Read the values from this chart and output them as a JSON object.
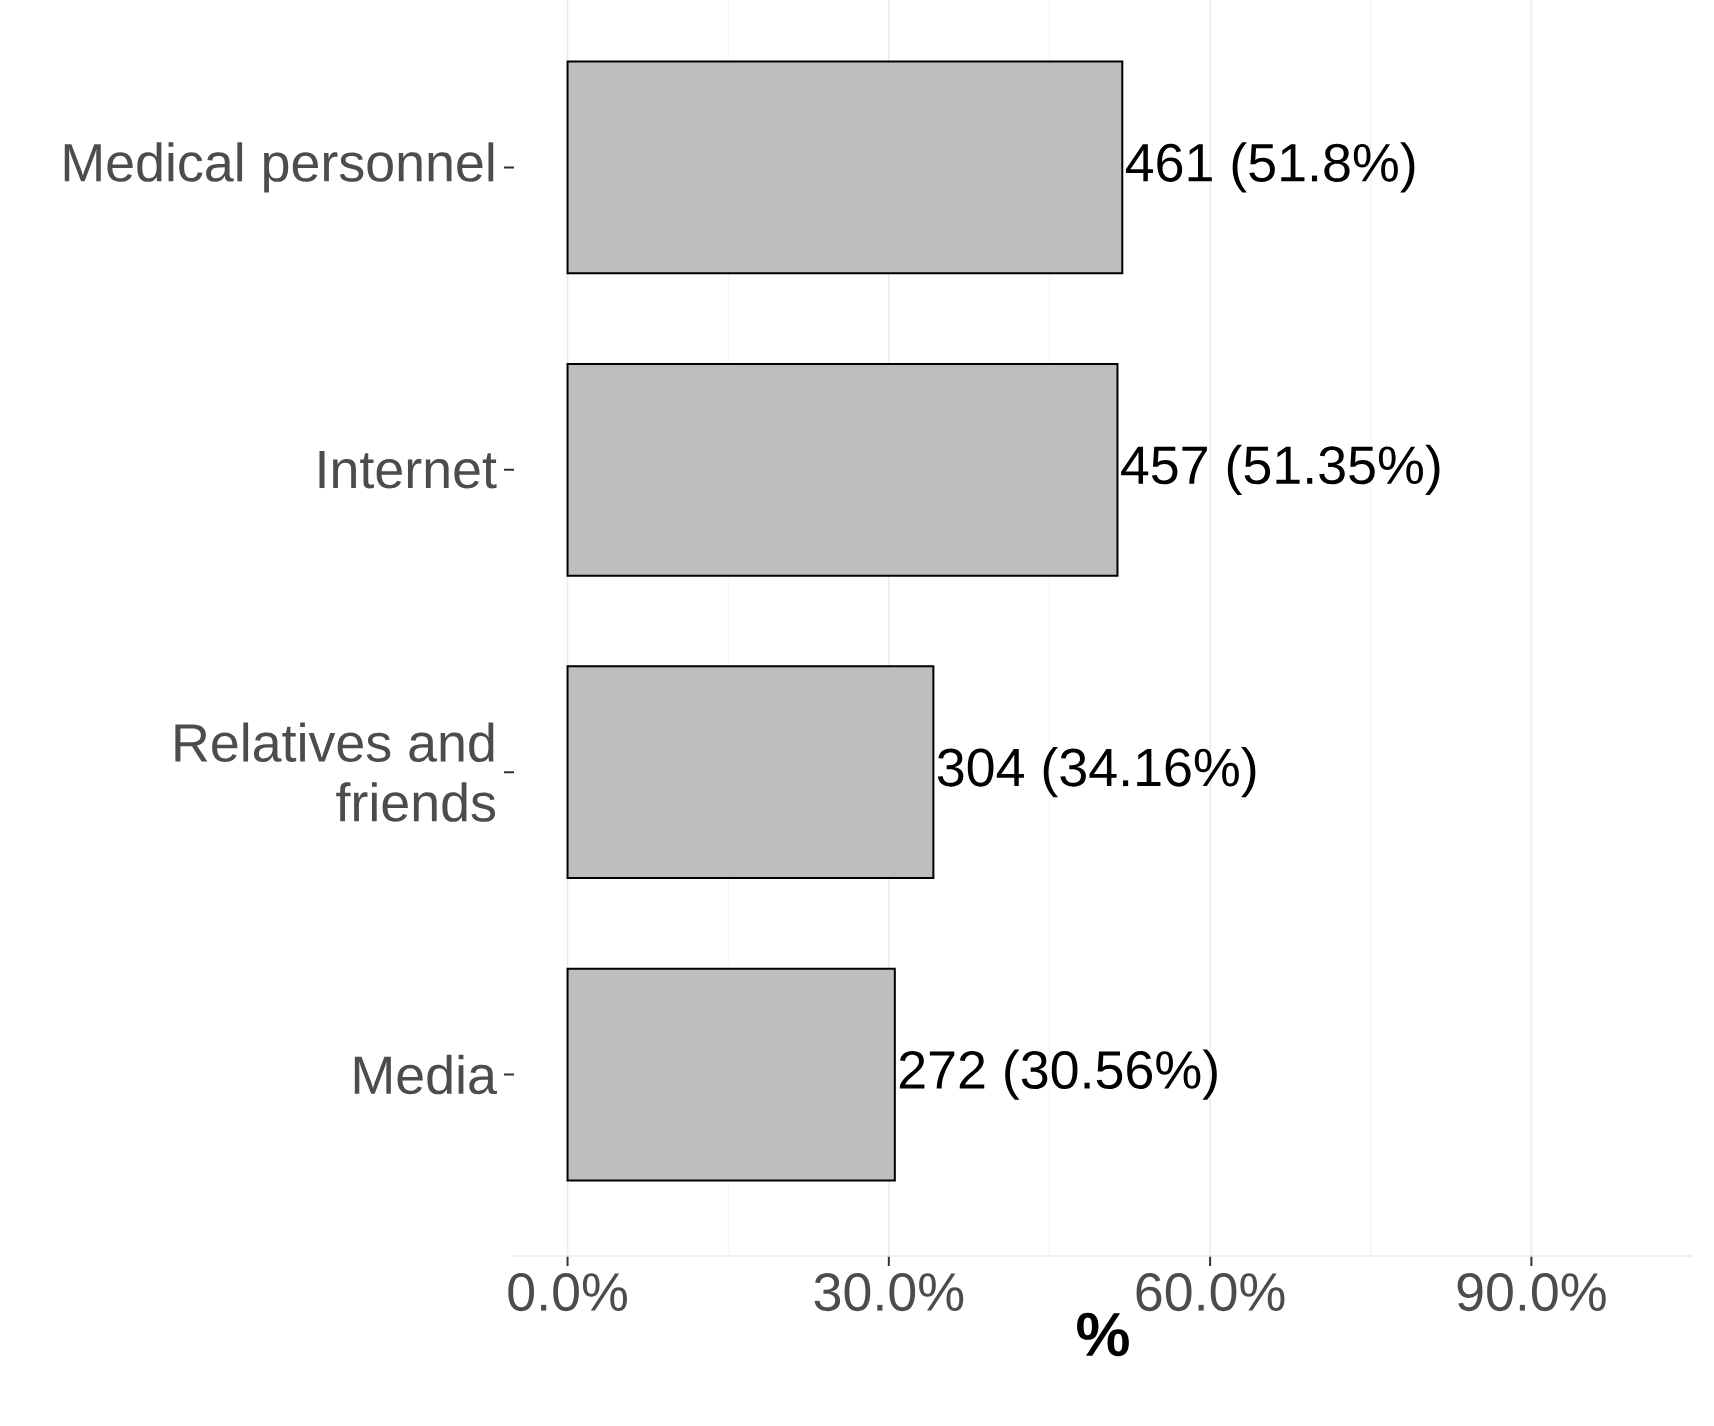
{
  "chart_data": {
    "type": "bar",
    "orientation": "horizontal",
    "xlabel": "%",
    "categories": [
      "Medical personnel",
      "Internet",
      "Relatives and friends",
      "Media"
    ],
    "values": [
      51.8,
      51.35,
      34.16,
      30.56
    ],
    "value_labels": [
      "461 (51.8%)",
      "457 (51.35%)",
      "304 (34.16%)",
      "272 (30.56%)"
    ],
    "color": "#bebebe",
    "xlim": [
      -5,
      105
    ],
    "xticks": [
      {
        "value": 0,
        "label": "0.0%"
      },
      {
        "value": 30,
        "label": "30.0%"
      },
      {
        "value": 60,
        "label": "60.0%"
      },
      {
        "value": 90,
        "label": "90.0%"
      }
    ],
    "grid": "x"
  }
}
